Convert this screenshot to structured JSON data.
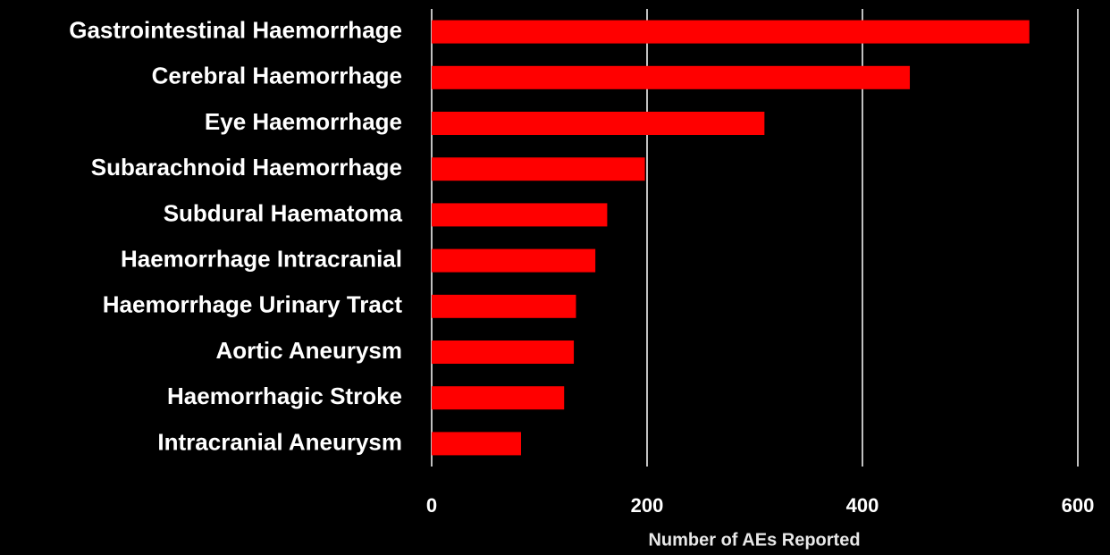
{
  "chart_data": {
    "type": "hbar",
    "x_label": "Number of AEs Reported",
    "categories": [
      "Gastrointestinal Haemorrhage",
      "Cerebral Haemorrhage",
      "Eye Haemorrhage",
      "Subarachnoid Haemorrhage",
      "Subdural Haematoma",
      "Haemorrhage Intracranial",
      "Haemorrhage Urinary Tract",
      "Aortic Aneurysm",
      "Haemorrhagic Stroke",
      "Intracranial Aneurysm"
    ],
    "values": [
      555,
      444,
      309,
      198,
      163,
      152,
      134,
      132,
      123,
      83
    ],
    "color": "#ff0000",
    "xlim": [
      0,
      600
    ],
    "xticks": [
      0,
      200,
      400,
      600
    ],
    "grid": true
  }
}
